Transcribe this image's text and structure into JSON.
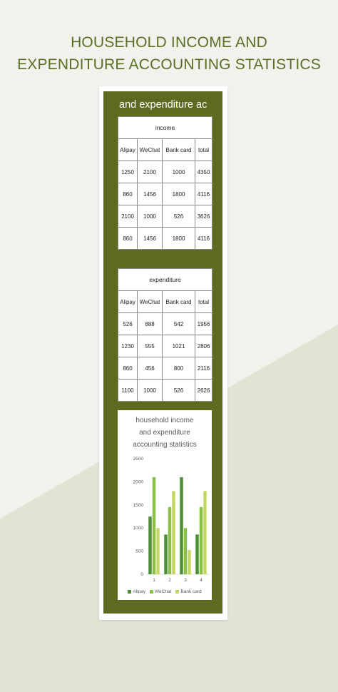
{
  "page": {
    "title_line1": "HOUSEHOLD INCOME AND",
    "title_line2": "EXPENDITURE ACCOUNTING STATISTICS"
  },
  "sheet": {
    "header": "and expenditure ac"
  },
  "income": {
    "caption": "income",
    "columns": [
      "Alipay",
      "WeChat",
      "Bank card",
      "total"
    ],
    "rows": [
      [
        "1250",
        "2100",
        "1000",
        "4350"
      ],
      [
        "860",
        "1456",
        "1800",
        "4116"
      ],
      [
        "2100",
        "1000",
        "526",
        "3626"
      ],
      [
        "860",
        "1456",
        "1800",
        "4116"
      ]
    ]
  },
  "expenditure": {
    "caption": "expenditure",
    "columns": [
      "Alipay",
      "WeChat",
      "Bank card",
      "total"
    ],
    "rows": [
      [
        "526",
        "888",
        "542",
        "1956"
      ],
      [
        "1230",
        "555",
        "1021",
        "2806"
      ],
      [
        "860",
        "456",
        "800",
        "2116"
      ],
      [
        "1100",
        "1000",
        "526",
        "2626"
      ]
    ]
  },
  "colors": {
    "title": "#5a6e23",
    "sheet": "#5c6b1f",
    "alipay": "#4f8f3a",
    "wechat": "#8cbf45",
    "bank_card": "#c3d860"
  },
  "chart_data": {
    "type": "bar",
    "title_lines": [
      "household income",
      "and expenditure",
      "accounting statistics"
    ],
    "categories": [
      "1",
      "2",
      "3",
      "4"
    ],
    "series": [
      {
        "name": "Alipay",
        "values": [
          1250,
          860,
          2100,
          860
        ]
      },
      {
        "name": "WeChat",
        "values": [
          2100,
          1456,
          1000,
          1456
        ]
      },
      {
        "name": "Bank card",
        "values": [
          1000,
          1800,
          526,
          1800
        ]
      }
    ],
    "yticks": [
      "0",
      "500",
      "1000",
      "1500",
      "2000",
      "2500"
    ],
    "ylim": [
      0,
      2500
    ],
    "grid": false,
    "legend_position": "bottom"
  }
}
